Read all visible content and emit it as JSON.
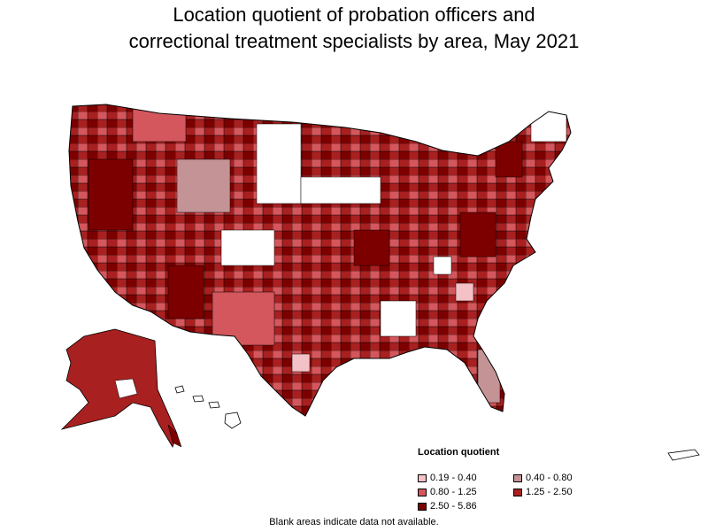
{
  "title": {
    "line1": "Location quotient of probation officers and",
    "line2": "correctional treatment specialists by area, May 2021"
  },
  "legend": {
    "title": "Location quotient",
    "items": [
      {
        "label": "0.19 - 0.40",
        "color": "#f4c1c7"
      },
      {
        "label": "0.40 - 0.80",
        "color": "#c49396"
      },
      {
        "label": "0.80 - 1.25",
        "color": "#d3575d"
      },
      {
        "label": "1.25 - 2.50",
        "color": "#a82020"
      },
      {
        "label": "2.50 - 5.86",
        "color": "#7d0000"
      }
    ]
  },
  "footnote": "Blank areas indicate data not available.",
  "colors": {
    "border": "#000000",
    "no_data": "#ffffff"
  }
}
